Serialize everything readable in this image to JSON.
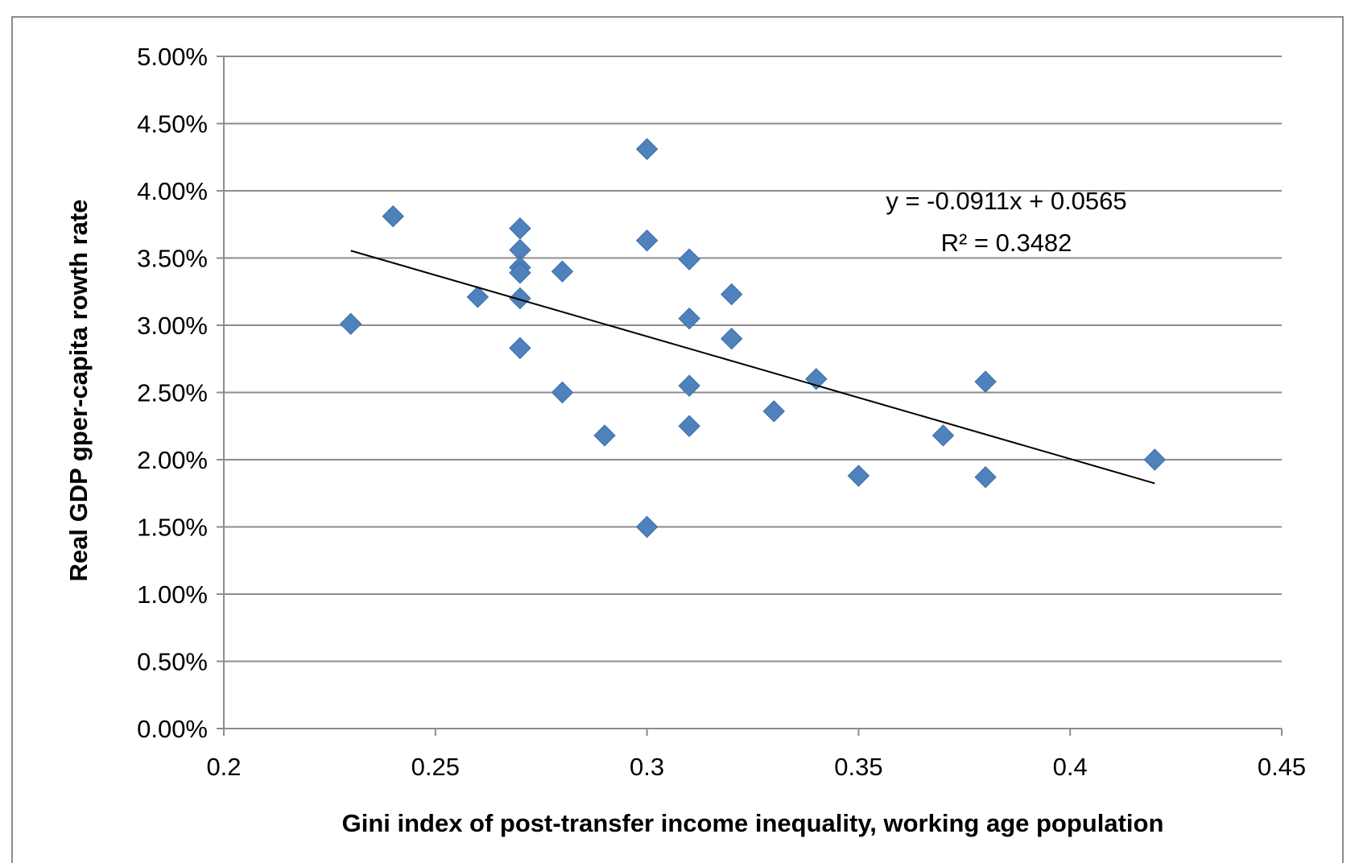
{
  "chart_data": {
    "type": "scatter",
    "xlabel": "Gini index of post-transfer income inequality, working age population",
    "ylabel": "Real GDP gper-capita rowth rate",
    "xlim": [
      0.2,
      0.45
    ],
    "ylim": [
      0,
      0.05
    ],
    "x_ticks": [
      "0.2",
      "0.25",
      "0.3",
      "0.35",
      "0.4",
      "0.45"
    ],
    "y_ticks": [
      "0.00%",
      "0.50%",
      "1.00%",
      "1.50%",
      "2.00%",
      "2.50%",
      "3.00%",
      "3.50%",
      "4.00%",
      "4.50%",
      "5.00%"
    ],
    "grid": "horizontal",
    "marker": "diamond",
    "colors": {
      "points": "#4f81bd",
      "trendline": "#000000",
      "grid": "#8c8c8c",
      "axis": "#8c8c8c"
    },
    "points": [
      {
        "x": 0.23,
        "y": 0.0301
      },
      {
        "x": 0.24,
        "y": 0.0381
      },
      {
        "x": 0.26,
        "y": 0.0321
      },
      {
        "x": 0.27,
        "y": 0.0372
      },
      {
        "x": 0.27,
        "y": 0.0356
      },
      {
        "x": 0.27,
        "y": 0.0343
      },
      {
        "x": 0.27,
        "y": 0.0339
      },
      {
        "x": 0.27,
        "y": 0.032
      },
      {
        "x": 0.27,
        "y": 0.0283
      },
      {
        "x": 0.28,
        "y": 0.034
      },
      {
        "x": 0.28,
        "y": 0.025
      },
      {
        "x": 0.29,
        "y": 0.0218
      },
      {
        "x": 0.3,
        "y": 0.0431
      },
      {
        "x": 0.3,
        "y": 0.0363
      },
      {
        "x": 0.3,
        "y": 0.015
      },
      {
        "x": 0.31,
        "y": 0.0349
      },
      {
        "x": 0.31,
        "y": 0.0305
      },
      {
        "x": 0.31,
        "y": 0.0255
      },
      {
        "x": 0.31,
        "y": 0.0225
      },
      {
        "x": 0.32,
        "y": 0.0323
      },
      {
        "x": 0.32,
        "y": 0.029
      },
      {
        "x": 0.33,
        "y": 0.0236
      },
      {
        "x": 0.34,
        "y": 0.026
      },
      {
        "x": 0.35,
        "y": 0.0188
      },
      {
        "x": 0.37,
        "y": 0.0218
      },
      {
        "x": 0.38,
        "y": 0.0258
      },
      {
        "x": 0.38,
        "y": 0.0187
      },
      {
        "x": 0.42,
        "y": 0.02
      }
    ],
    "trendline": {
      "slope": -0.0911,
      "intercept": 0.0565,
      "x_range": [
        0.23,
        0.42
      ]
    },
    "annotations": {
      "equation": "y = -0.0911x + 0.0565",
      "r_squared": "R² = 0.3482"
    }
  }
}
